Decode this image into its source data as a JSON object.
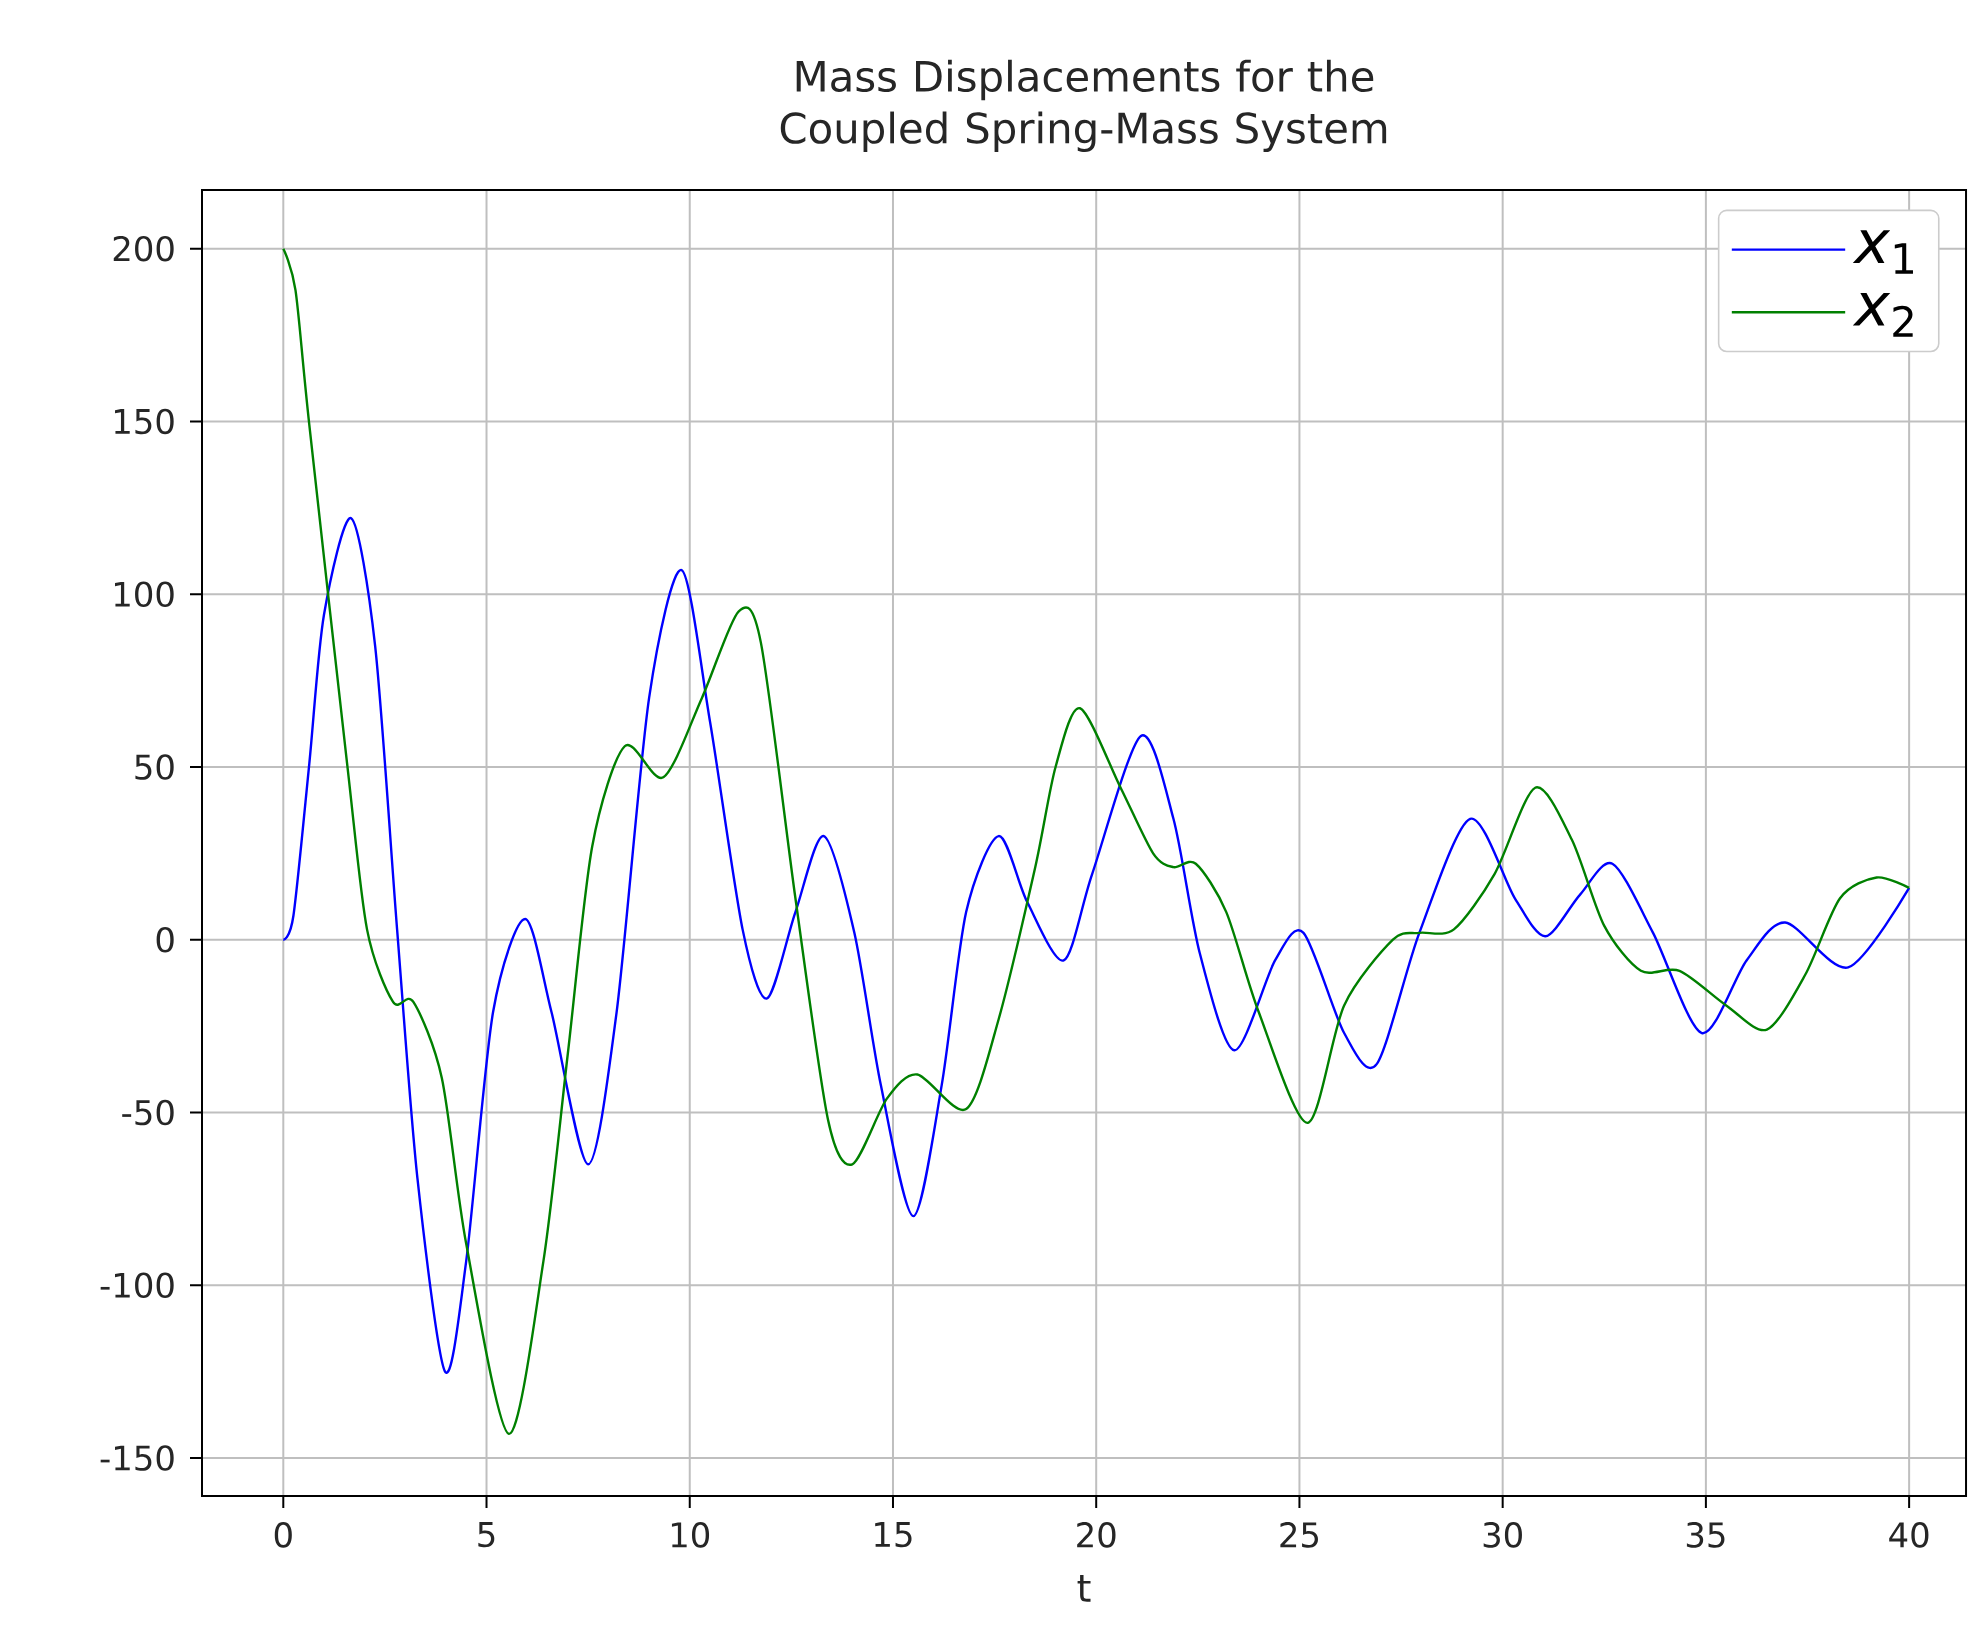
{
  "chart_data": {
    "type": "line",
    "title": "Mass Displacements for the Coupled Spring-Mass System",
    "xlabel": "t",
    "xlim": [
      -2,
      41.4
    ],
    "ylim": [
      -161,
      217
    ],
    "xticks": [
      0,
      5,
      10,
      15,
      20,
      25,
      30,
      35,
      40
    ],
    "yticks": [
      -150,
      -100,
      -50,
      0,
      50,
      100,
      150,
      200
    ],
    "grid": true,
    "legend": "top right",
    "series": [
      {
        "name": "*x*$_{1}$",
        "color": "#0000ff",
        "x": [
          0,
          0.25,
          0.64,
          1.0,
          1.67,
          2.26,
          2.8,
          3.3,
          3.98,
          4.5,
          5.16,
          5.95,
          6.6,
          7.5,
          8.2,
          9.0,
          9.8,
          10.5,
          11.3,
          11.9,
          12.6,
          13.3,
          14.05,
          14.7,
          15.5,
          16.2,
          16.8,
          17.6,
          18.3,
          19.2,
          19.9,
          21.1,
          21.9,
          22.55,
          23.4,
          24.4,
          25.1,
          26.1,
          26.9,
          27.95,
          29.2,
          30.3,
          31.05,
          31.9,
          32.7,
          33.7,
          34.9,
          36.0,
          36.95,
          38.5,
          40
        ],
        "values": [
          0,
          7,
          51,
          94,
          122,
          85,
          3,
          -69,
          -125,
          -93,
          -21,
          6,
          -21,
          -65,
          -21,
          70,
          107,
          63,
          3,
          -17,
          8,
          30,
          2,
          -42,
          -80,
          -42,
          8,
          30,
          11,
          -6,
          19,
          59,
          35,
          -4,
          -32,
          -6,
          2,
          -27,
          -36,
          2,
          35,
          12,
          1,
          13,
          22,
          2,
          -27,
          -6,
          5,
          -8,
          15
        ]
      },
      {
        "name": "*x*$_{2}$",
        "color": "#008000",
        "x": [
          0,
          0.3,
          0.64,
          1.57,
          2.06,
          2.7,
          3.2,
          3.9,
          4.5,
          5.55,
          6.4,
          7.0,
          7.6,
          8.4,
          9.35,
          10.3,
          11.2,
          11.75,
          12.6,
          13.4,
          14.0,
          14.85,
          15.6,
          16.8,
          17.6,
          18.5,
          19.0,
          19.6,
          20.6,
          21.4,
          21.9,
          22.45,
          23.2,
          24.0,
          25.2,
          26.1,
          27.3,
          27.95,
          28.8,
          29.8,
          30.8,
          31.7,
          32.5,
          33.4,
          34.35,
          35.5,
          36.5,
          37.45,
          38.3,
          39.2,
          40
        ],
        "values": [
          200,
          188,
          149,
          51,
          3,
          -18,
          -18,
          -40,
          -88,
          -143,
          -93,
          -33,
          27,
          56,
          47,
          70,
          95,
          86,
          12,
          -52,
          -65,
          -46,
          -39,
          -49,
          -23,
          21,
          50,
          67,
          44,
          25,
          21,
          22,
          8,
          -21,
          -53,
          -19,
          0,
          2,
          3,
          19,
          44,
          29,
          4,
          -9,
          -9,
          -19,
          -26,
          -10,
          12,
          18,
          15
        ]
      }
    ]
  }
}
